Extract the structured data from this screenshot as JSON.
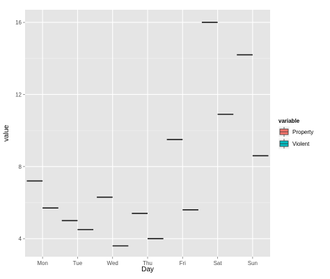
{
  "chart_data": {
    "type": "boxplot",
    "xlabel": "Day",
    "ylabel": "value",
    "categories": [
      "Mon",
      "Tue",
      "Wed",
      "Thu",
      "Fri",
      "Sat",
      "Sun"
    ],
    "y_ticks": [
      4,
      8,
      12,
      16
    ],
    "ylim": [
      3.0,
      16.7
    ],
    "grid": true,
    "legend": {
      "title": "variable",
      "position": "right",
      "entries": [
        "Property",
        "Violent"
      ]
    },
    "series": [
      {
        "name": "Property",
        "color": "#f8766d",
        "values": [
          7.2,
          5.0,
          6.3,
          5.4,
          9.5,
          16.0,
          14.2
        ]
      },
      {
        "name": "Violent",
        "color": "#00bfc4",
        "values": [
          5.7,
          4.5,
          3.6,
          4.0,
          5.6,
          10.9,
          8.6
        ]
      }
    ]
  }
}
